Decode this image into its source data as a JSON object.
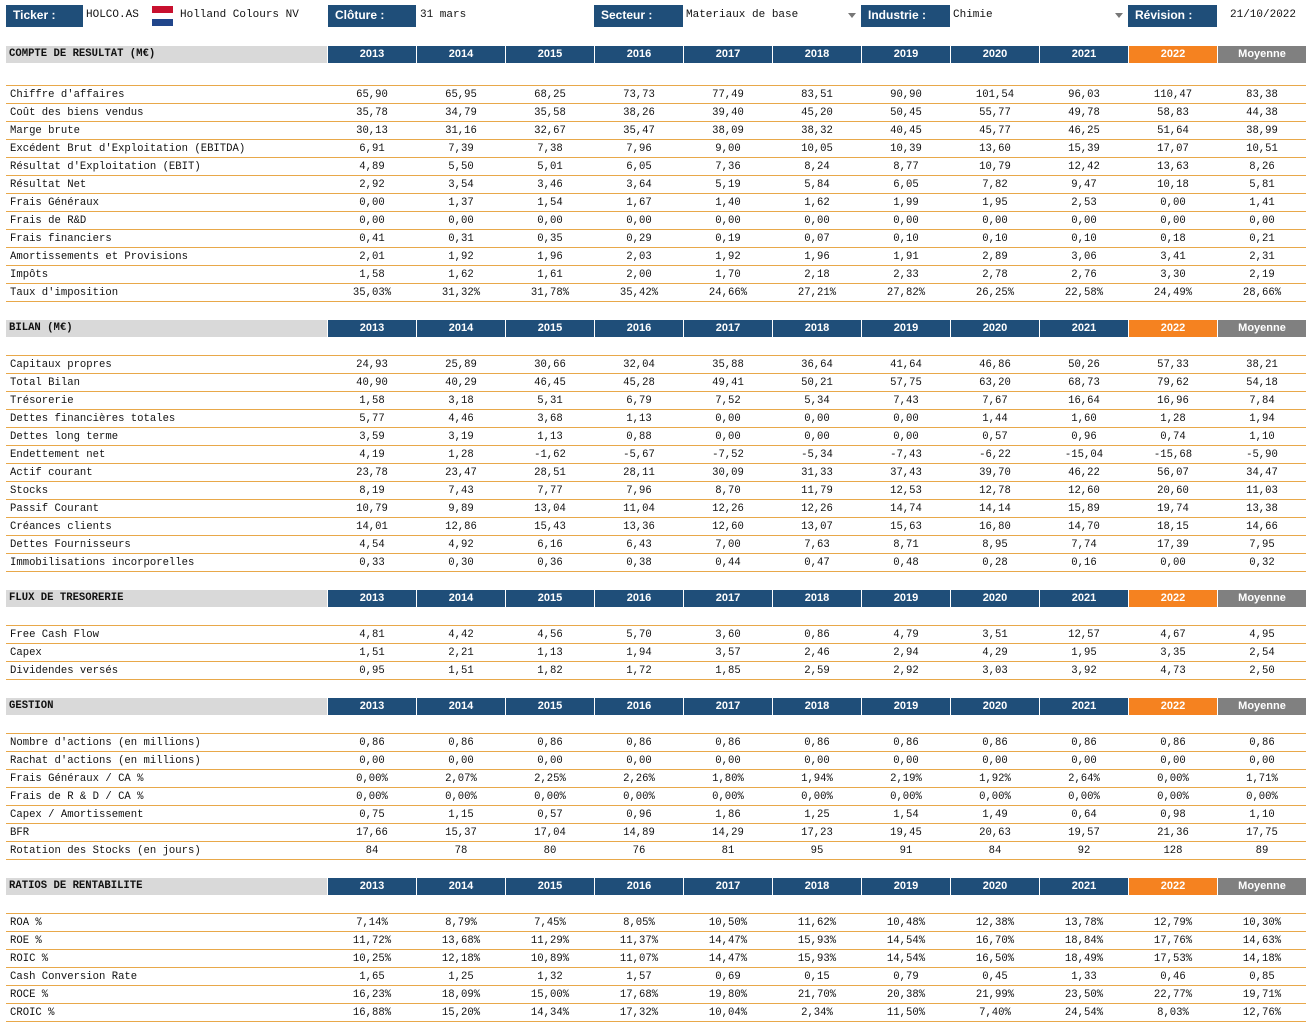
{
  "header": {
    "ticker_label": "Ticker :",
    "ticker": "HOLCO.AS",
    "company": "Holland Colours NV",
    "closing_label": "Clôture :",
    "closing": "31 mars",
    "sector_label": "Secteur :",
    "sector": "Materiaux de base",
    "industry_label": "Industrie :",
    "industry": "Chimie",
    "revision_label": "Révision :",
    "revision": "21/10/2022"
  },
  "sections": [
    {
      "title": "COMPTE DE RESULTAT (M€)",
      "columns": [
        "2013",
        "2014",
        "2015",
        "2016",
        "2017",
        "2018",
        "2019",
        "2020",
        "2021",
        "2022",
        "Moyenne"
      ],
      "rows": [
        {
          "label": "Chiffre d'affaires",
          "values": [
            "65,90",
            "65,95",
            "68,25",
            "73,73",
            "77,49",
            "83,51",
            "90,90",
            "101,54",
            "96,03",
            "110,47",
            "83,38"
          ]
        },
        {
          "label": "Coût des biens vendus",
          "values": [
            "35,78",
            "34,79",
            "35,58",
            "38,26",
            "39,40",
            "45,20",
            "50,45",
            "55,77",
            "49,78",
            "58,83",
            "44,38"
          ]
        },
        {
          "label": "Marge brute",
          "values": [
            "30,13",
            "31,16",
            "32,67",
            "35,47",
            "38,09",
            "38,32",
            "40,45",
            "45,77",
            "46,25",
            "51,64",
            "38,99"
          ]
        },
        {
          "label": "Excédent Brut d'Exploitation (EBITDA)",
          "values": [
            "6,91",
            "7,39",
            "7,38",
            "7,96",
            "9,00",
            "10,05",
            "10,39",
            "13,60",
            "15,39",
            "17,07",
            "10,51"
          ]
        },
        {
          "label": "Résultat d'Exploitation (EBIT)",
          "values": [
            "4,89",
            "5,50",
            "5,01",
            "6,05",
            "7,36",
            "8,24",
            "8,77",
            "10,79",
            "12,42",
            "13,63",
            "8,26"
          ]
        },
        {
          "label": "Résultat Net",
          "values": [
            "2,92",
            "3,54",
            "3,46",
            "3,64",
            "5,19",
            "5,84",
            "6,05",
            "7,82",
            "9,47",
            "10,18",
            "5,81"
          ]
        },
        {
          "label": "Frais Généraux",
          "values": [
            "0,00",
            "1,37",
            "1,54",
            "1,67",
            "1,40",
            "1,62",
            "1,99",
            "1,95",
            "2,53",
            "0,00",
            "1,41"
          ]
        },
        {
          "label": "Frais de R&D",
          "values": [
            "0,00",
            "0,00",
            "0,00",
            "0,00",
            "0,00",
            "0,00",
            "0,00",
            "0,00",
            "0,00",
            "0,00",
            "0,00"
          ]
        },
        {
          "label": "Frais financiers",
          "values": [
            "0,41",
            "0,31",
            "0,35",
            "0,29",
            "0,19",
            "0,07",
            "0,10",
            "0,10",
            "0,10",
            "0,18",
            "0,21"
          ]
        },
        {
          "label": "Amortissements et Provisions",
          "values": [
            "2,01",
            "1,92",
            "1,96",
            "2,03",
            "1,92",
            "1,96",
            "1,91",
            "2,89",
            "3,06",
            "3,41",
            "2,31"
          ]
        },
        {
          "label": "Impôts",
          "values": [
            "1,58",
            "1,62",
            "1,61",
            "2,00",
            "1,70",
            "2,18",
            "2,33",
            "2,78",
            "2,76",
            "3,30",
            "2,19"
          ]
        },
        {
          "label": "Taux d'imposition",
          "values": [
            "35,03%",
            "31,32%",
            "31,78%",
            "35,42%",
            "24,66%",
            "27,21%",
            "27,82%",
            "26,25%",
            "22,58%",
            "24,49%",
            "28,66%"
          ]
        }
      ]
    },
    {
      "title": "BILAN (M€)",
      "columns": [
        "2013",
        "2014",
        "2015",
        "2016",
        "2017",
        "2018",
        "2019",
        "2020",
        "2021",
        "2022",
        "Moyenne"
      ],
      "rows": [
        {
          "label": "Capitaux propres",
          "values": [
            "24,93",
            "25,89",
            "30,66",
            "32,04",
            "35,88",
            "36,64",
            "41,64",
            "46,86",
            "50,26",
            "57,33",
            "38,21"
          ]
        },
        {
          "label": "Total Bilan",
          "values": [
            "40,90",
            "40,29",
            "46,45",
            "45,28",
            "49,41",
            "50,21",
            "57,75",
            "63,20",
            "68,73",
            "79,62",
            "54,18"
          ]
        },
        {
          "label": "Trésorerie",
          "values": [
            "1,58",
            "3,18",
            "5,31",
            "6,79",
            "7,52",
            "5,34",
            "7,43",
            "7,67",
            "16,64",
            "16,96",
            "7,84"
          ]
        },
        {
          "label": "Dettes financières totales",
          "values": [
            "5,77",
            "4,46",
            "3,68",
            "1,13",
            "0,00",
            "0,00",
            "0,00",
            "1,44",
            "1,60",
            "1,28",
            "1,94"
          ]
        },
        {
          "label": "Dettes long terme",
          "values": [
            "3,59",
            "3,19",
            "1,13",
            "0,88",
            "0,00",
            "0,00",
            "0,00",
            "0,57",
            "0,96",
            "0,74",
            "1,10"
          ]
        },
        {
          "label": "Endettement net",
          "values": [
            "4,19",
            "1,28",
            "-1,62",
            "-5,67",
            "-7,52",
            "-5,34",
            "-7,43",
            "-6,22",
            "-15,04",
            "-15,68",
            "-5,90"
          ]
        },
        {
          "label": "Actif courant",
          "values": [
            "23,78",
            "23,47",
            "28,51",
            "28,11",
            "30,09",
            "31,33",
            "37,43",
            "39,70",
            "46,22",
            "56,07",
            "34,47"
          ]
        },
        {
          "label": "Stocks",
          "values": [
            "8,19",
            "7,43",
            "7,77",
            "7,96",
            "8,70",
            "11,79",
            "12,53",
            "12,78",
            "12,60",
            "20,60",
            "11,03"
          ]
        },
        {
          "label": "Passif Courant",
          "values": [
            "10,79",
            "9,89",
            "13,04",
            "11,04",
            "12,26",
            "12,26",
            "14,74",
            "14,14",
            "15,89",
            "19,74",
            "13,38"
          ]
        },
        {
          "label": "Créances clients",
          "values": [
            "14,01",
            "12,86",
            "15,43",
            "13,36",
            "12,60",
            "13,07",
            "15,63",
            "16,80",
            "14,70",
            "18,15",
            "14,66"
          ]
        },
        {
          "label": "Dettes Fournisseurs",
          "values": [
            "4,54",
            "4,92",
            "6,16",
            "6,43",
            "7,00",
            "7,63",
            "8,71",
            "8,95",
            "7,74",
            "17,39",
            "7,95"
          ]
        },
        {
          "label": "Immobilisations incorporelles",
          "values": [
            "0,33",
            "0,30",
            "0,36",
            "0,38",
            "0,44",
            "0,47",
            "0,48",
            "0,28",
            "0,16",
            "0,00",
            "0,32"
          ]
        }
      ]
    },
    {
      "title": "FLUX DE TRESORERIE",
      "columns": [
        "2013",
        "2014",
        "2015",
        "2016",
        "2017",
        "2018",
        "2019",
        "2020",
        "2021",
        "2022",
        "Moyenne"
      ],
      "rows": [
        {
          "label": "Free Cash Flow",
          "values": [
            "4,81",
            "4,42",
            "4,56",
            "5,70",
            "3,60",
            "0,86",
            "4,79",
            "3,51",
            "12,57",
            "4,67",
            "4,95"
          ]
        },
        {
          "label": "Capex",
          "values": [
            "1,51",
            "2,21",
            "1,13",
            "1,94",
            "3,57",
            "2,46",
            "2,94",
            "4,29",
            "1,95",
            "3,35",
            "2,54"
          ]
        },
        {
          "label": "Dividendes versés",
          "values": [
            "0,95",
            "1,51",
            "1,82",
            "1,72",
            "1,85",
            "2,59",
            "2,92",
            "3,03",
            "3,92",
            "4,73",
            "2,50"
          ]
        }
      ]
    },
    {
      "title": "GESTION",
      "columns": [
        "2013",
        "2014",
        "2015",
        "2016",
        "2017",
        "2018",
        "2019",
        "2020",
        "2021",
        "2022",
        "Moyenne"
      ],
      "rows": [
        {
          "label": "Nombre d'actions (en millions)",
          "values": [
            "0,86",
            "0,86",
            "0,86",
            "0,86",
            "0,86",
            "0,86",
            "0,86",
            "0,86",
            "0,86",
            "0,86",
            "0,86"
          ]
        },
        {
          "label": "Rachat d'actions (en millions)",
          "values": [
            "0,00",
            "0,00",
            "0,00",
            "0,00",
            "0,00",
            "0,00",
            "0,00",
            "0,00",
            "0,00",
            "0,00",
            "0,00"
          ]
        },
        {
          "label": "Frais Généraux / CA %",
          "values": [
            "0,00%",
            "2,07%",
            "2,25%",
            "2,26%",
            "1,80%",
            "1,94%",
            "2,19%",
            "1,92%",
            "2,64%",
            "0,00%",
            "1,71%"
          ]
        },
        {
          "label": "Frais de R & D / CA %",
          "values": [
            "0,00%",
            "0,00%",
            "0,00%",
            "0,00%",
            "0,00%",
            "0,00%",
            "0,00%",
            "0,00%",
            "0,00%",
            "0,00%",
            "0,00%"
          ]
        },
        {
          "label": "Capex / Amortissement",
          "values": [
            "0,75",
            "1,15",
            "0,57",
            "0,96",
            "1,86",
            "1,25",
            "1,54",
            "1,49",
            "0,64",
            "0,98",
            "1,10"
          ]
        },
        {
          "label": "BFR",
          "values": [
            "17,66",
            "15,37",
            "17,04",
            "14,89",
            "14,29",
            "17,23",
            "19,45",
            "20,63",
            "19,57",
            "21,36",
            "17,75"
          ]
        },
        {
          "label": "Rotation des Stocks (en jours)",
          "values": [
            "84",
            "78",
            "80",
            "76",
            "81",
            "95",
            "91",
            "84",
            "92",
            "128",
            "89"
          ]
        }
      ]
    },
    {
      "title": "RATIOS DE RENTABILITE",
      "columns": [
        "2013",
        "2014",
        "2015",
        "2016",
        "2017",
        "2018",
        "2019",
        "2020",
        "2021",
        "2022",
        "Moyenne"
      ],
      "rows": [
        {
          "label": "ROA %",
          "values": [
            "7,14%",
            "8,79%",
            "7,45%",
            "8,05%",
            "10,50%",
            "11,62%",
            "10,48%",
            "12,38%",
            "13,78%",
            "12,79%",
            "10,30%"
          ]
        },
        {
          "label": "ROE %",
          "values": [
            "11,72%",
            "13,68%",
            "11,29%",
            "11,37%",
            "14,47%",
            "15,93%",
            "14,54%",
            "16,70%",
            "18,84%",
            "17,76%",
            "14,63%"
          ]
        },
        {
          "label": "ROIC %",
          "values": [
            "10,25%",
            "12,18%",
            "10,89%",
            "11,07%",
            "14,47%",
            "15,93%",
            "14,54%",
            "16,50%",
            "18,49%",
            "17,53%",
            "14,18%"
          ]
        },
        {
          "label": "Cash Conversion Rate",
          "values": [
            "1,65",
            "1,25",
            "1,32",
            "1,57",
            "0,69",
            "0,15",
            "0,79",
            "0,45",
            "1,33",
            "0,46",
            "0,85"
          ]
        },
        {
          "label": "ROCE %",
          "values": [
            "16,23%",
            "18,09%",
            "15,00%",
            "17,68%",
            "19,80%",
            "21,70%",
            "20,38%",
            "21,99%",
            "23,50%",
            "22,77%",
            "19,71%"
          ]
        },
        {
          "label": "CROIC %",
          "values": [
            "16,88%",
            "15,20%",
            "14,34%",
            "17,32%",
            "10,04%",
            "2,34%",
            "11,50%",
            "7,40%",
            "24,54%",
            "8,03%",
            "12,76%"
          ]
        }
      ]
    }
  ]
}
